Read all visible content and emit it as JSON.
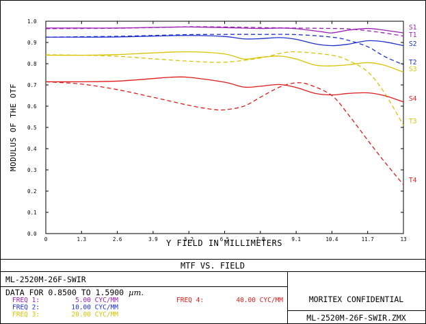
{
  "chart_data": {
    "type": "line",
    "ylabel": "MODULUS OF THE OTF",
    "xlabel": "Y FIELD IN MILLIMETERS",
    "xlim": [
      0,
      13
    ],
    "ylim": [
      0,
      1.0
    ],
    "x_ticks": [
      "0",
      "1.3",
      "2.6",
      "3.9",
      "5.2",
      "6.5",
      "7.8",
      "9.1",
      "10.4",
      "11.7",
      "13"
    ],
    "y_ticks": [
      "0.0",
      "0.1",
      "0.2",
      "0.3",
      "0.4",
      "0.5",
      "0.6",
      "0.7",
      "0.8",
      "0.9",
      "1.0"
    ],
    "series": [
      {
        "name": "S1",
        "color": "#9b1fb5",
        "dash": false,
        "x": [
          0,
          1.3,
          2.6,
          3.9,
          4.5,
          5.2,
          6.5,
          7.8,
          8.5,
          9.1,
          10.0,
          10.4,
          11.0,
          11.7,
          12.3,
          13
        ],
        "y": [
          0.968,
          0.968,
          0.968,
          0.971,
          0.972,
          0.973,
          0.97,
          0.966,
          0.968,
          0.965,
          0.951,
          0.945,
          0.958,
          0.966,
          0.958,
          0.945
        ]
      },
      {
        "name": "T1",
        "color": "#9b1fb5",
        "dash": true,
        "x": [
          0,
          1.3,
          2.6,
          3.9,
          5.2,
          6.5,
          7.8,
          9.1,
          10.4,
          11.0,
          11.7,
          12.3,
          13
        ],
        "y": [
          0.965,
          0.966,
          0.967,
          0.97,
          0.974,
          0.973,
          0.97,
          0.968,
          0.966,
          0.964,
          0.955,
          0.945,
          0.93
        ]
      },
      {
        "name": "S2",
        "color": "#1c2fcf",
        "dash": false,
        "x": [
          0,
          1.3,
          2.6,
          3.9,
          5.2,
          6.5,
          7.2,
          7.8,
          8.5,
          9.1,
          9.8,
          10.4,
          11.0,
          11.7,
          12.3,
          13
        ],
        "y": [
          0.925,
          0.925,
          0.926,
          0.93,
          0.933,
          0.928,
          0.917,
          0.918,
          0.923,
          0.915,
          0.893,
          0.885,
          0.892,
          0.908,
          0.903,
          0.885
        ]
      },
      {
        "name": "T2",
        "color": "#1c2fcf",
        "dash": true,
        "x": [
          0,
          1.3,
          2.6,
          3.9,
          5.2,
          6.5,
          7.8,
          9.1,
          10.4,
          11.0,
          11.7,
          12.3,
          13
        ],
        "y": [
          0.925,
          0.927,
          0.929,
          0.933,
          0.937,
          0.938,
          0.938,
          0.937,
          0.925,
          0.91,
          0.88,
          0.835,
          0.795
        ]
      },
      {
        "name": "S3",
        "color": "#d8c400",
        "dash": false,
        "x": [
          0,
          1.3,
          2.6,
          3.9,
          5.2,
          6.5,
          7.2,
          7.8,
          8.5,
          9.1,
          9.8,
          10.4,
          11.0,
          11.7,
          12.3,
          13
        ],
        "y": [
          0.84,
          0.84,
          0.843,
          0.851,
          0.856,
          0.846,
          0.822,
          0.83,
          0.836,
          0.822,
          0.793,
          0.79,
          0.795,
          0.805,
          0.793,
          0.76
        ]
      },
      {
        "name": "T3",
        "color": "#d8c400",
        "dash": true,
        "x": [
          0,
          1.3,
          2.6,
          3.9,
          5.2,
          6.5,
          7.8,
          8.5,
          9.1,
          10.4,
          11.0,
          11.7,
          12.3,
          13
        ],
        "y": [
          0.842,
          0.84,
          0.835,
          0.823,
          0.812,
          0.807,
          0.827,
          0.848,
          0.856,
          0.84,
          0.815,
          0.762,
          0.665,
          0.51
        ]
      },
      {
        "name": "S4",
        "color": "#e01a1a",
        "dash": false,
        "x": [
          0,
          1.3,
          2.6,
          3.9,
          4.5,
          5.2,
          6.5,
          7.2,
          7.8,
          8.5,
          9.1,
          9.8,
          10.4,
          11.0,
          11.7,
          12.3,
          13
        ],
        "y": [
          0.715,
          0.715,
          0.718,
          0.73,
          0.736,
          0.736,
          0.713,
          0.69,
          0.694,
          0.702,
          0.688,
          0.66,
          0.653,
          0.66,
          0.663,
          0.65,
          0.62
        ]
      },
      {
        "name": "T4",
        "color": "#e01a1a",
        "dash": true,
        "x": [
          0,
          1.3,
          2.6,
          3.9,
          5.2,
          6.0,
          6.5,
          7.2,
          7.8,
          8.5,
          9.1,
          9.6,
          10.4,
          11.0,
          11.7,
          12.3,
          13
        ],
        "y": [
          0.715,
          0.704,
          0.678,
          0.642,
          0.604,
          0.586,
          0.583,
          0.6,
          0.642,
          0.69,
          0.71,
          0.7,
          0.65,
          0.56,
          0.44,
          0.34,
          0.23
        ]
      }
    ]
  },
  "title_box": {
    "title": "MTF VS. FIELD"
  },
  "info": {
    "lens_name": "ML-2520M-26F-SWIR",
    "data_range_prefix": "DATA FOR",
    "data_range": "0.8500 TO 1.5900",
    "data_unit": "µm.",
    "freqs": [
      {
        "label": "FREQ 1:",
        "value": "5.00 CYC/MM",
        "color": "#9b1fb5"
      },
      {
        "label": "FREQ 2:",
        "value": "10.00 CYC/MM",
        "color": "#1c2fcf"
      },
      {
        "label": "FREQ 3:",
        "value": "20.00 CYC/MM",
        "color": "#d8c400"
      },
      {
        "label": "FREQ 4:",
        "value": "40.00 CYC/MM",
        "color": "#e01a1a"
      }
    ],
    "confidential": "MORITEX CONFIDENTIAL",
    "file_name": "ML-2520M-26F-SWIR.ZMX"
  }
}
